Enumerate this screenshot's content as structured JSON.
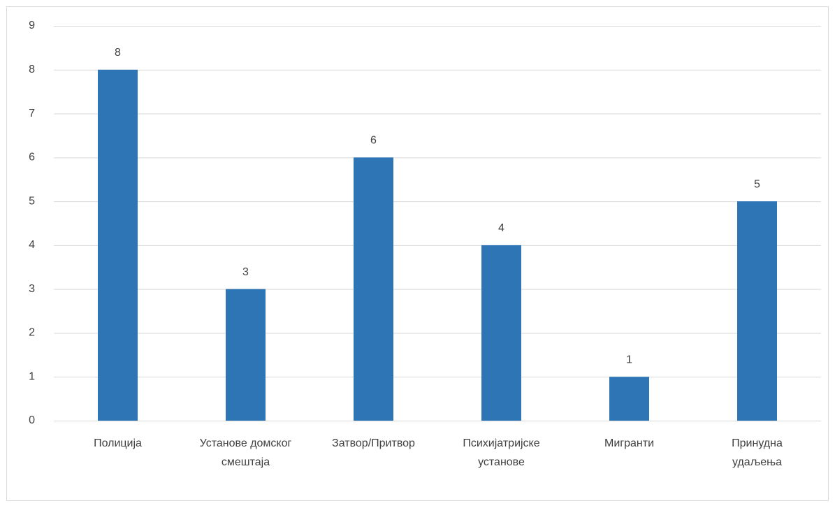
{
  "chart_data": {
    "type": "bar",
    "categories": [
      [
        "Полиција"
      ],
      [
        "Установе домског",
        "смештаја"
      ],
      [
        "Затвор/Притвор"
      ],
      [
        "Психијатријске",
        "установе"
      ],
      [
        "Мигранти"
      ],
      [
        "Принудна",
        "удаљења"
      ]
    ],
    "values": [
      8,
      3,
      6,
      4,
      1,
      5
    ],
    "color": "#2e75b6",
    "ylim": [
      0,
      9
    ],
    "yticks": [
      0,
      1,
      2,
      3,
      4,
      5,
      6,
      7,
      8,
      9
    ],
    "grid": true
  }
}
